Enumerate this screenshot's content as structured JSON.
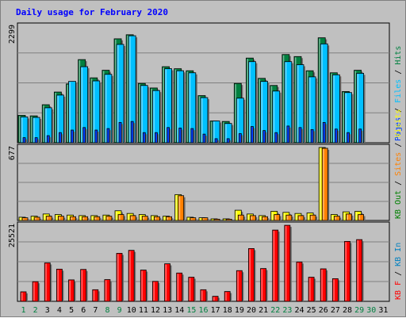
{
  "title": "Daily usage for February 2020",
  "colors": {
    "hits": "#008040",
    "files": "#00c0ff",
    "pages": "#0040ff",
    "visits": "#ffff00",
    "sites": "#ff8000",
    "kbin": "#0080c0",
    "kbout": "#008000",
    "kbf": "#ff0000",
    "weekday": "#000000",
    "weekend": "#008040"
  },
  "panels": {
    "top": {
      "max_label": "2299",
      "legend": [
        "Hits",
        "Files",
        "Pages"
      ]
    },
    "mid": {
      "max_label": "677",
      "legend": [
        "Visits",
        "Sites",
        "KB Out"
      ]
    },
    "bot": {
      "max_label": "25521",
      "legend": [
        "KB In",
        "KB F"
      ]
    }
  },
  "chart_data": [
    {
      "type": "bar",
      "title": "Daily usage for February 2020",
      "categories": [
        "1",
        "2",
        "3",
        "4",
        "5",
        "6",
        "7",
        "8",
        "9",
        "10",
        "11",
        "12",
        "13",
        "14",
        "15",
        "16",
        "17",
        "18",
        "19",
        "20",
        "21",
        "22",
        "23",
        "24",
        "25",
        "26",
        "27",
        "28",
        "29",
        "30",
        "31"
      ],
      "ylim": [
        0,
        2299
      ],
      "series": [
        {
          "name": "Hits",
          "values": [
            540,
            530,
            750,
            1000,
            1160,
            1640,
            1280,
            1430,
            2050,
            2130,
            1170,
            1080,
            1500,
            1460,
            1420,
            930,
            430,
            420,
            1170,
            1670,
            1270,
            1130,
            1740,
            1700,
            1420,
            2070,
            1380,
            1010,
            1430,
            0,
            0
          ]
        },
        {
          "name": "Files",
          "values": [
            510,
            500,
            690,
            940,
            1210,
            1500,
            1220,
            1350,
            1940,
            2110,
            1130,
            1030,
            1460,
            1420,
            1380,
            890,
            430,
            380,
            880,
            1600,
            1210,
            1020,
            1600,
            1540,
            1300,
            1950,
            1340,
            990,
            1370,
            0,
            0
          ]
        },
        {
          "name": "Pages",
          "values": [
            100,
            100,
            140,
            200,
            250,
            300,
            250,
            280,
            400,
            420,
            200,
            200,
            300,
            290,
            280,
            170,
            80,
            80,
            180,
            320,
            240,
            200,
            330,
            300,
            260,
            400,
            270,
            200,
            270,
            0,
            0
          ]
        }
      ]
    },
    {
      "type": "bar",
      "ylim": [
        0,
        677
      ],
      "series": [
        {
          "name": "Visits",
          "values": [
            30,
            40,
            60,
            55,
            50,
            45,
            45,
            50,
            90,
            65,
            55,
            45,
            40,
            240,
            30,
            25,
            15,
            15,
            95,
            60,
            45,
            85,
            75,
            65,
            70,
            677,
            55,
            80,
            85,
            0,
            0
          ]
        },
        {
          "name": "Sites",
          "values": [
            25,
            30,
            40,
            40,
            35,
            35,
            35,
            40,
            55,
            45,
            40,
            35,
            35,
            230,
            25,
            25,
            12,
            12,
            50,
            45,
            35,
            55,
            50,
            45,
            50,
            670,
            40,
            60,
            55,
            0,
            0
          ]
        }
      ]
    },
    {
      "type": "bar",
      "ylim": [
        0,
        25521
      ],
      "series": [
        {
          "name": "KB F",
          "values": [
            3200,
            6600,
            12900,
            10800,
            7200,
            10700,
            3900,
            7300,
            16100,
            17100,
            10500,
            6700,
            12600,
            9500,
            8100,
            3900,
            1700,
            3300,
            10300,
            17700,
            11000,
            23900,
            25500,
            13200,
            8100,
            10900,
            7600,
            20100,
            20700,
            0,
            0
          ]
        }
      ]
    }
  ]
}
